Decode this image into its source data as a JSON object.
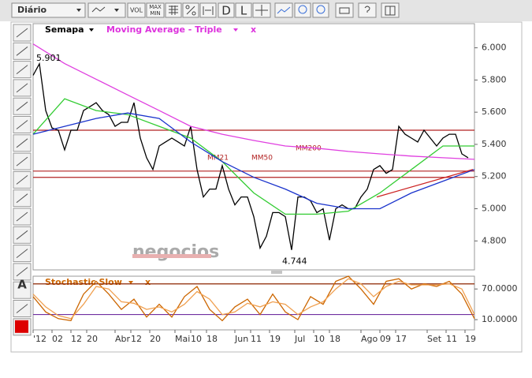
{
  "toolbar": {
    "period": "Diário",
    "vol": "VOL",
    "min": "MIN",
    "max": "MAX",
    "d": "D",
    "l": "L"
  },
  "left_tools": {
    "text": "A"
  },
  "watermark": "negocios",
  "chart_data": [
    {
      "type": "line",
      "title": "Semapa",
      "indicator": "Moving Average - Triple",
      "close": "x",
      "xlim": [
        0,
        140
      ],
      "ylim": [
        4.62,
        6.15
      ],
      "yticks": [
        {
          "value": 4.8,
          "label": "4.800"
        },
        {
          "value": 5.0,
          "label": "5.000"
        },
        {
          "value": 5.2,
          "label": "5.200"
        },
        {
          "value": 5.4,
          "label": "5.400"
        },
        {
          "value": 5.6,
          "label": "5.600"
        },
        {
          "value": 5.8,
          "label": "5.800"
        },
        {
          "value": 6.0,
          "label": "6.000"
        }
      ],
      "grid": false,
      "series": [
        {
          "color": "#000000",
          "x": [
            0,
            2,
            4,
            6,
            8,
            10,
            12,
            14,
            16,
            18,
            20,
            22,
            24,
            26,
            28,
            30,
            32,
            34,
            36,
            38,
            40,
            42,
            44,
            46,
            48,
            50,
            52,
            54,
            56,
            58,
            60,
            62,
            64,
            66,
            68,
            70,
            72,
            74,
            76,
            78,
            80,
            82,
            84,
            86,
            88,
            90,
            92,
            94,
            96,
            98,
            100,
            102,
            104,
            106,
            108,
            110,
            112,
            114,
            116,
            118,
            120,
            122,
            124,
            126,
            128,
            130,
            132,
            134,
            136,
            138
          ],
          "values": [
            5.829,
            5.901,
            5.61,
            5.502,
            5.488,
            5.366,
            5.488,
            5.488,
            5.61,
            5.634,
            5.659,
            5.61,
            5.585,
            5.512,
            5.537,
            5.537,
            5.659,
            5.439,
            5.317,
            5.244,
            5.39,
            5.415,
            5.439,
            5.415,
            5.39,
            5.512,
            5.244,
            5.073,
            5.122,
            5.122,
            5.268,
            5.122,
            5.024,
            5.073,
            5.073,
            4.951,
            4.756,
            4.829,
            4.976,
            4.976,
            4.951,
            4.744,
            5.073,
            5.073,
            5.049,
            4.976,
            5.0,
            4.805,
            5.0,
            5.024,
            5.0,
            5.0,
            5.073,
            5.122,
            5.244,
            5.268,
            5.22,
            5.244,
            5.512,
            5.463,
            5.439,
            5.415,
            5.488,
            5.439,
            5.39,
            5.439,
            5.463,
            5.463,
            5.341,
            5.317
          ]
        },
        {
          "name": "MM21",
          "color": "#33cc33",
          "x": [
            0,
            10,
            20,
            30,
            40,
            50,
            60,
            70,
            80,
            90,
            100,
            110,
            120,
            130,
            140
          ],
          "values": [
            5.463,
            5.683,
            5.61,
            5.585,
            5.512,
            5.439,
            5.293,
            5.098,
            4.966,
            4.966,
            4.985,
            5.098,
            5.244,
            5.39,
            5.39
          ]
        },
        {
          "name": "MM50",
          "color": "#1a33cc",
          "x": [
            0,
            10,
            20,
            30,
            40,
            50,
            60,
            70,
            80,
            90,
            100,
            110,
            120,
            130,
            140
          ],
          "values": [
            5.463,
            5.512,
            5.561,
            5.595,
            5.561,
            5.415,
            5.293,
            5.195,
            5.122,
            5.034,
            5.0,
            5.0,
            5.098,
            5.171,
            5.244
          ]
        },
        {
          "name": "MM200",
          "color": "#e040e0",
          "x": [
            0,
            10,
            20,
            30,
            40,
            50,
            60,
            70,
            80,
            90,
            100,
            110,
            120,
            130,
            140
          ],
          "values": [
            6.024,
            5.902,
            5.805,
            5.707,
            5.61,
            5.512,
            5.463,
            5.424,
            5.39,
            5.376,
            5.356,
            5.341,
            5.327,
            5.317,
            5.307
          ]
        }
      ],
      "hlines": [
        5.488,
        5.234,
        5.195
      ],
      "hline_color": "#b22222",
      "trendline": {
        "x": [
          109,
          139.5
        ],
        "values": [
          5.073,
          5.244
        ],
        "color": "#cc2222"
      },
      "annotations": [
        {
          "x": 2,
          "value": 5.901
        },
        {
          "x": 82,
          "value": 4.744
        }
      ]
    },
    {
      "type": "line",
      "title": "Stochastic Slow",
      "close": "x",
      "xlim": [
        0,
        140
      ],
      "ylim": [
        -10,
        95
      ],
      "yticks": [
        {
          "value": 10,
          "label": "10.0000"
        },
        {
          "value": 70,
          "label": "70.0000"
        }
      ],
      "xticks": [
        {
          "value": 0,
          "label": "'12"
        },
        {
          "value": 6,
          "label": "02"
        },
        {
          "value": 12,
          "label": "12"
        },
        {
          "value": 17,
          "label": "20"
        },
        {
          "value": 26,
          "label": "Abr"
        },
        {
          "value": 31,
          "label": "12"
        },
        {
          "value": 37,
          "label": "20"
        },
        {
          "value": 45,
          "label": "Mai"
        },
        {
          "value": 50,
          "label": "10"
        },
        {
          "value": 55,
          "label": "18"
        },
        {
          "value": 64,
          "label": "Jun"
        },
        {
          "value": 69,
          "label": "11"
        },
        {
          "value": 75,
          "label": "19"
        },
        {
          "value": 83,
          "label": "Jul"
        },
        {
          "value": 89,
          "label": "10"
        },
        {
          "value": 94,
          "label": "18"
        },
        {
          "value": 104,
          "label": "Ago"
        },
        {
          "value": 110,
          "label": "09"
        },
        {
          "value": 115,
          "label": "17"
        },
        {
          "value": 125,
          "label": "Set"
        },
        {
          "value": 131,
          "label": "11"
        },
        {
          "value": 137,
          "label": "19"
        }
      ],
      "series": [
        {
          "color": "#cc6600",
          "x": [
            0,
            4,
            8,
            12,
            16,
            20,
            24,
            28,
            32,
            36,
            40,
            44,
            48,
            52,
            56,
            60,
            64,
            68,
            72,
            76,
            80,
            84,
            88,
            92,
            96,
            100,
            104,
            108,
            112,
            116,
            120,
            124,
            128,
            132,
            136,
            140
          ],
          "values": [
            55,
            25,
            12,
            8,
            60,
            85,
            60,
            30,
            50,
            15,
            40,
            15,
            55,
            75,
            30,
            8,
            35,
            50,
            20,
            60,
            25,
            10,
            55,
            40,
            85,
            95,
            70,
            40,
            85,
            90,
            70,
            80,
            75,
            85,
            60,
            12
          ]
        },
        {
          "color": "#f0a050",
          "x": [
            0,
            4,
            8,
            12,
            16,
            20,
            24,
            28,
            32,
            36,
            40,
            44,
            48,
            52,
            56,
            60,
            64,
            68,
            72,
            76,
            80,
            84,
            88,
            92,
            96,
            100,
            104,
            108,
            112,
            116,
            120,
            124,
            128,
            132,
            136,
            140
          ],
          "values": [
            60,
            35,
            18,
            12,
            40,
            75,
            70,
            45,
            42,
            30,
            35,
            25,
            40,
            65,
            50,
            20,
            25,
            42,
            35,
            45,
            40,
            20,
            35,
            45,
            70,
            90,
            80,
            55,
            75,
            85,
            78,
            78,
            78,
            80,
            70,
            20
          ]
        }
      ],
      "hlines": [
        80,
        20
      ],
      "hline_colors": [
        "#8b2500",
        "#7030a0"
      ]
    }
  ]
}
